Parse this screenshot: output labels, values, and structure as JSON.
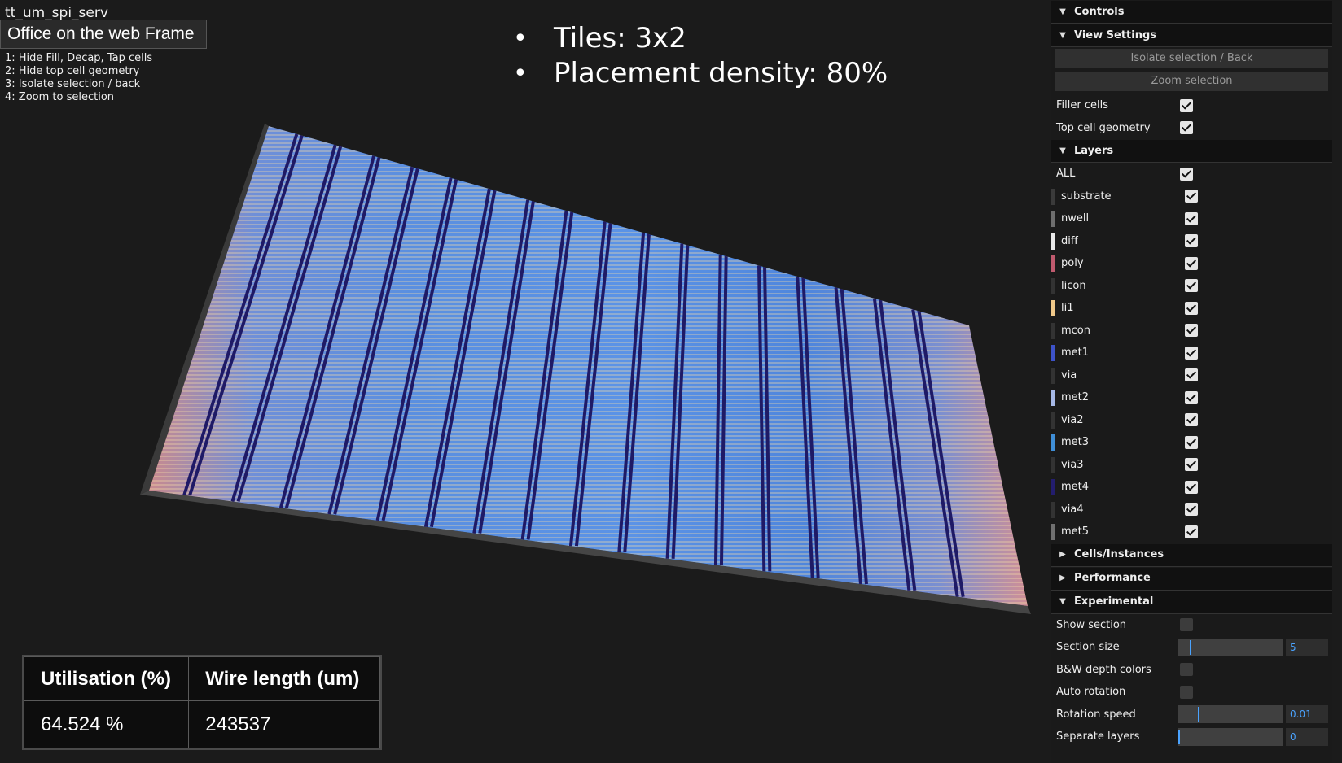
{
  "viewport": {
    "design_name": "tt_um_spi_serv",
    "frame_label": "Office on the web Frame",
    "shortcuts": [
      "1: Hide Fill, Decap, Tap cells",
      "2: Hide top cell geometry",
      "3: Isolate selection / back",
      "4: Zoom to selection"
    ],
    "bullets": [
      "Tiles: 3x2",
      "Placement density: 80%"
    ],
    "stats": {
      "utilisation_header": "Utilisation (%)",
      "wire_header": "Wire length (um)",
      "utilisation_value": "64.524 %",
      "wire_value": "243537"
    }
  },
  "panel": {
    "controls_title": "Controls",
    "view_settings_title": "View Settings",
    "isolate_button": "Isolate selection / Back",
    "zoom_button": "Zoom selection",
    "filler_cells_label": "Filler cells",
    "top_cell_label": "Top cell geometry",
    "layers_title": "Layers",
    "all_label": "ALL",
    "layers": [
      {
        "name": "substrate",
        "color": "#3a3a3a"
      },
      {
        "name": "nwell",
        "color": "#6e6e6e"
      },
      {
        "name": "diff",
        "color": "#e8e8e8"
      },
      {
        "name": "poly",
        "color": "#c05a6e"
      },
      {
        "name": "licon",
        "color": "#333333"
      },
      {
        "name": "li1",
        "color": "#f0c98a"
      },
      {
        "name": "mcon",
        "color": "#333333"
      },
      {
        "name": "met1",
        "color": "#3d52c8"
      },
      {
        "name": "via",
        "color": "#333333"
      },
      {
        "name": "met2",
        "color": "#a6b8e6"
      },
      {
        "name": "via2",
        "color": "#333333"
      },
      {
        "name": "met3",
        "color": "#3f8ed6"
      },
      {
        "name": "via3",
        "color": "#333333"
      },
      {
        "name": "met4",
        "color": "#231d6e"
      },
      {
        "name": "via4",
        "color": "#333333"
      },
      {
        "name": "met5",
        "color": "#707070"
      }
    ],
    "cells_title": "Cells/Instances",
    "performance_title": "Performance",
    "experimental_title": "Experimental",
    "show_section_label": "Show section",
    "section_size_label": "Section size",
    "section_size_value": "5",
    "bw_label": "B&W depth colors",
    "auto_rotation_label": "Auto rotation",
    "rotation_speed_label": "Rotation speed",
    "rotation_speed_value": "0.01",
    "separate_layers_label": "Separate layers",
    "separate_layers_value": "0"
  }
}
